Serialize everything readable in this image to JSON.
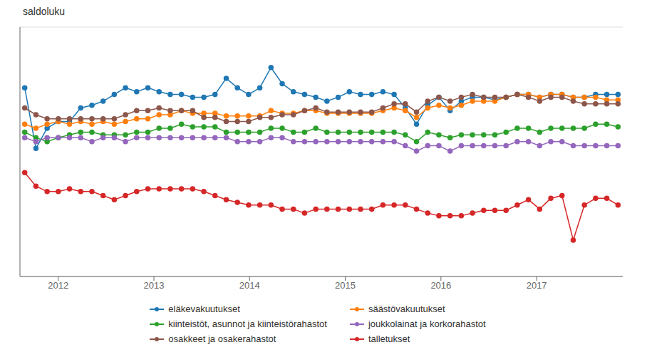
{
  "chart_data": {
    "type": "line",
    "ylabel": "saldoluku",
    "x": [
      2011.65,
      2011.766981,
      2011.883962,
      2012.000943,
      2012.117925,
      2012.234906,
      2012.351887,
      2012.468868,
      2012.585849,
      2012.70283,
      2012.819811,
      2012.936792,
      2013.053774,
      2013.170755,
      2013.287736,
      2013.404717,
      2013.521698,
      2013.638679,
      2013.75566,
      2013.872642,
      2013.989623,
      2014.106604,
      2014.223585,
      2014.340566,
      2014.457547,
      2014.574528,
      2014.691509,
      2014.808491,
      2014.925472,
      2015.042453,
      2015.159434,
      2015.276415,
      2015.393396,
      2015.510377,
      2015.627358,
      2015.74434,
      2015.861321,
      2015.978302,
      2016.095283,
      2016.212264,
      2016.329245,
      2016.446226,
      2016.563208,
      2016.680189,
      2016.79717,
      2016.914151,
      2017.031132,
      2017.148113,
      2017.265094,
      2017.382075,
      2017.499057,
      2017.616038,
      2017.733019,
      2017.85
    ],
    "series": [
      {
        "name": "eläkevakuutukset",
        "color": "#1f77b4",
        "values": [
          55,
          10,
          25,
          30,
          30,
          40,
          42,
          45,
          50,
          55,
          52,
          55,
          52,
          50,
          50,
          48,
          48,
          50,
          62,
          55,
          50,
          55,
          70,
          58,
          52,
          50,
          48,
          45,
          48,
          52,
          50,
          50,
          52,
          50,
          40,
          28,
          42,
          48,
          38,
          45,
          48,
          48,
          46,
          48,
          50,
          50,
          48,
          50,
          50,
          48,
          48,
          50,
          50,
          50
        ]
      },
      {
        "name": "säästövakuutukset",
        "color": "#ff7f0e",
        "values": [
          28,
          25,
          28,
          30,
          28,
          30,
          28,
          30,
          28,
          30,
          32,
          32,
          35,
          35,
          38,
          36,
          36,
          36,
          34,
          34,
          34,
          34,
          38,
          36,
          36,
          38,
          38,
          36,
          36,
          36,
          36,
          36,
          38,
          40,
          38,
          33,
          40,
          42,
          40,
          42,
          45,
          45,
          45,
          48,
          50,
          50,
          48,
          50,
          50,
          48,
          48,
          48,
          46,
          46
        ]
      },
      {
        "name": "kiinteistöt, asunnot ja kiinteistörahastot",
        "color": "#2ca02c",
        "values": [
          22,
          18,
          15,
          18,
          20,
          22,
          22,
          20,
          20,
          20,
          22,
          22,
          25,
          25,
          28,
          26,
          26,
          26,
          22,
          22,
          22,
          22,
          25,
          25,
          22,
          22,
          25,
          22,
          22,
          22,
          22,
          22,
          22,
          22,
          20,
          15,
          22,
          20,
          18,
          20,
          20,
          20,
          20,
          22,
          25,
          25,
          22,
          25,
          25,
          25,
          25,
          28,
          28,
          26
        ]
      },
      {
        "name": "joukkolainat ja korkorahastot",
        "color": "#9467bd",
        "values": [
          18,
          15,
          18,
          18,
          18,
          18,
          15,
          18,
          18,
          15,
          18,
          18,
          18,
          18,
          18,
          18,
          18,
          18,
          18,
          15,
          15,
          15,
          18,
          18,
          15,
          15,
          15,
          15,
          15,
          15,
          15,
          15,
          15,
          15,
          12,
          8,
          12,
          12,
          8,
          12,
          12,
          12,
          12,
          12,
          15,
          15,
          12,
          15,
          15,
          12,
          12,
          12,
          12,
          12
        ]
      },
      {
        "name": "osakkeet ja osakerahastot",
        "color": "#8c564b",
        "values": [
          40,
          35,
          32,
          32,
          32,
          32,
          32,
          32,
          32,
          35,
          38,
          38,
          40,
          38,
          38,
          38,
          33,
          33,
          30,
          30,
          30,
          33,
          33,
          35,
          35,
          38,
          40,
          37,
          37,
          37,
          37,
          37,
          40,
          43,
          43,
          37,
          45,
          48,
          45,
          48,
          50,
          48,
          48,
          48,
          50,
          48,
          45,
          48,
          48,
          45,
          43,
          43,
          43,
          43
        ]
      },
      {
        "name": "talletukset",
        "color": "#d62728",
        "values": [
          -8,
          -18,
          -22,
          -22,
          -20,
          -22,
          -22,
          -25,
          -28,
          -25,
          -22,
          -20,
          -20,
          -20,
          -20,
          -20,
          -22,
          -25,
          -28,
          -30,
          -32,
          -32,
          -32,
          -35,
          -35,
          -38,
          -35,
          -35,
          -35,
          -35,
          -35,
          -35,
          -32,
          -32,
          -32,
          -35,
          -38,
          -40,
          -40,
          -40,
          -38,
          -36,
          -36,
          -36,
          -32,
          -28,
          -35,
          -27,
          -25,
          -58,
          -32,
          -27,
          -27,
          -32
        ]
      }
    ],
    "xlim": [
      2011.6,
      2017.9
    ],
    "xticks": [
      2012,
      2013,
      2014,
      2015,
      2016,
      2017
    ],
    "ylim": [
      -85,
      100
    ],
    "yticks": [
      -80,
      -60,
      -40,
      -20,
      0,
      20,
      40,
      60,
      80
    ],
    "grid": true,
    "tick_labels": "x",
    "marker": "circle",
    "legend": "bottom"
  }
}
